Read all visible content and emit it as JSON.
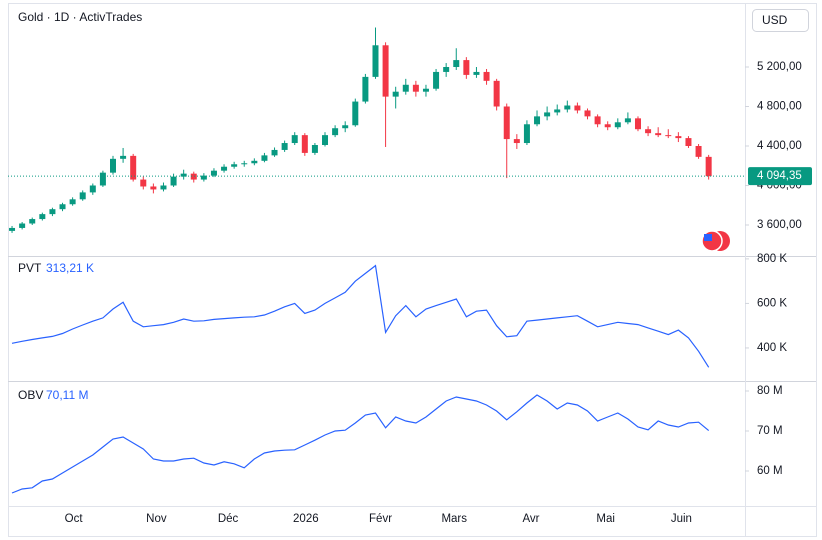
{
  "chart_data": [
    {
      "type": "candlestick",
      "title": "Gold · 1D · ActivTrades",
      "currency": "USD",
      "up_color": "#089981",
      "down_color": "#f23645",
      "candles": [
        [
          3540,
          3590,
          3520,
          3570
        ],
        [
          3570,
          3630,
          3555,
          3615
        ],
        [
          3615,
          3675,
          3600,
          3660
        ],
        [
          3660,
          3725,
          3645,
          3710
        ],
        [
          3710,
          3775,
          3690,
          3760
        ],
        [
          3760,
          3825,
          3740,
          3810
        ],
        [
          3810,
          3880,
          3795,
          3860
        ],
        [
          3860,
          3950,
          3845,
          3930
        ],
        [
          3930,
          4020,
          3905,
          4000
        ],
        [
          4000,
          4150,
          3985,
          4130
        ],
        [
          4130,
          4300,
          4110,
          4270
        ],
        [
          4270,
          4380,
          4230,
          4300
        ],
        [
          4300,
          4320,
          4040,
          4060
        ],
        [
          4060,
          4090,
          3960,
          3990
        ],
        [
          3990,
          4020,
          3920,
          3960
        ],
        [
          3960,
          4030,
          3940,
          4000
        ],
        [
          4000,
          4120,
          3985,
          4090
        ],
        [
          4090,
          4160,
          4060,
          4120
        ],
        [
          4120,
          4140,
          4030,
          4060
        ],
        [
          4060,
          4125,
          4040,
          4100
        ],
        [
          4100,
          4175,
          4085,
          4150
        ],
        [
          4150,
          4215,
          4130,
          4190
        ],
        [
          4190,
          4240,
          4170,
          4215
        ],
        [
          4215,
          4250,
          4190,
          4225
        ],
        [
          4225,
          4275,
          4205,
          4250
        ],
        [
          4250,
          4330,
          4235,
          4305
        ],
        [
          4305,
          4385,
          4290,
          4360
        ],
        [
          4360,
          4455,
          4340,
          4430
        ],
        [
          4430,
          4540,
          4410,
          4510
        ],
        [
          4510,
          4530,
          4300,
          4330
        ],
        [
          4330,
          4430,
          4310,
          4410
        ],
        [
          4410,
          4540,
          4395,
          4510
        ],
        [
          4510,
          4610,
          4490,
          4580
        ],
        [
          4580,
          4650,
          4540,
          4610
        ],
        [
          4610,
          4880,
          4595,
          4850
        ],
        [
          4850,
          5130,
          4830,
          5100
        ],
        [
          5100,
          5600,
          5080,
          5420
        ],
        [
          5420,
          5450,
          4390,
          4900
        ],
        [
          4900,
          5000,
          4780,
          4950
        ],
        [
          4950,
          5080,
          4920,
          5020
        ],
        [
          5020,
          5060,
          4900,
          4950
        ],
        [
          4950,
          5020,
          4900,
          4980
        ],
        [
          4980,
          5180,
          4960,
          5150
        ],
        [
          5150,
          5240,
          5100,
          5200
        ],
        [
          5200,
          5390,
          5170,
          5270
        ],
        [
          5270,
          5300,
          5080,
          5120
        ],
        [
          5120,
          5200,
          5090,
          5150
        ],
        [
          5150,
          5180,
          5020,
          5060
        ],
        [
          5060,
          5080,
          4760,
          4800
        ],
        [
          4800,
          4830,
          4075,
          4470
        ],
        [
          4470,
          4520,
          4370,
          4430
        ],
        [
          4430,
          4660,
          4410,
          4620
        ],
        [
          4620,
          4760,
          4600,
          4700
        ],
        [
          4700,
          4800,
          4660,
          4740
        ],
        [
          4740,
          4820,
          4710,
          4770
        ],
        [
          4770,
          4860,
          4740,
          4810
        ],
        [
          4810,
          4840,
          4730,
          4760
        ],
        [
          4760,
          4780,
          4670,
          4700
        ],
        [
          4700,
          4720,
          4590,
          4620
        ],
        [
          4620,
          4650,
          4560,
          4590
        ],
        [
          4590,
          4680,
          4570,
          4640
        ],
        [
          4640,
          4740,
          4620,
          4680
        ],
        [
          4680,
          4700,
          4550,
          4570
        ],
        [
          4570,
          4600,
          4500,
          4530
        ],
        [
          4530,
          4590,
          4490,
          4510
        ],
        [
          4510,
          4570,
          4480,
          4500
        ],
        [
          4500,
          4540,
          4440,
          4480
        ],
        [
          4480,
          4500,
          4380,
          4400
        ],
        [
          4400,
          4420,
          4270,
          4290
        ],
        [
          4290,
          4310,
          4060,
          4094.35
        ]
      ],
      "last_price": {
        "value": 4094.35,
        "label": "4 094,35"
      },
      "ylim": [
        3296,
        5828
      ],
      "yticks": [
        {
          "value": 3600,
          "label": "3 600,00"
        },
        {
          "value": 4000,
          "label": "4 000,00"
        },
        {
          "value": 4400,
          "label": "4 400,00"
        },
        {
          "value": 4800,
          "label": "4 800,00"
        },
        {
          "value": 5200,
          "label": "5 200,00"
        }
      ],
      "xlim": [
        -0.4,
        72.6
      ],
      "xticks": [
        {
          "value": 6.1,
          "label": "Oct"
        },
        {
          "value": 14.3,
          "label": "Nov"
        },
        {
          "value": 21.4,
          "label": "Déc"
        },
        {
          "value": 29.1,
          "label": "2026"
        },
        {
          "value": 36.5,
          "label": "Févr"
        },
        {
          "value": 43.8,
          "label": "Mars"
        },
        {
          "value": 51.4,
          "label": "Avr"
        },
        {
          "value": 58.8,
          "label": "Mai"
        },
        {
          "value": 66.3,
          "label": "Juin"
        }
      ]
    },
    {
      "type": "line",
      "name": "PVT",
      "last_label": "313,21 K",
      "color": "#2962ff",
      "values": [
        421,
        430,
        438,
        445,
        452,
        465,
        485,
        503,
        520,
        535,
        575,
        605,
        520,
        495,
        500,
        505,
        515,
        530,
        520,
        522,
        528,
        532,
        535,
        538,
        540,
        548,
        565,
        585,
        600,
        555,
        570,
        600,
        625,
        650,
        700,
        735,
        770,
        470,
        545,
        590,
        540,
        575,
        590,
        605,
        620,
        540,
        565,
        570,
        500,
        450,
        455,
        520,
        525,
        530,
        535,
        540,
        545,
        520,
        495,
        505,
        515,
        510,
        505,
        490,
        475,
        460,
        480,
        445,
        385,
        313.21
      ],
      "ylim": [
        256,
        804
      ],
      "yticks": [
        {
          "value": 400,
          "label": "400 K"
        },
        {
          "value": 600,
          "label": "600 K"
        },
        {
          "value": 800,
          "label": "800 K"
        }
      ]
    },
    {
      "type": "line",
      "name": "OBV",
      "last_label": "70,11 M",
      "color": "#2962ff",
      "values": [
        54.5,
        55.5,
        55.8,
        57.5,
        58,
        59.5,
        61,
        62.5,
        64,
        66,
        68,
        68.5,
        67,
        65.5,
        63,
        62.5,
        62.5,
        63,
        63.2,
        62,
        61.5,
        62.3,
        61.8,
        60.8,
        63,
        64.5,
        65,
        65.2,
        65.3,
        66.5,
        67.7,
        69,
        70,
        70.2,
        72,
        74,
        74.5,
        70.8,
        73.5,
        72.5,
        72,
        73.5,
        75.5,
        77.5,
        78.5,
        78,
        77.5,
        76.5,
        75,
        72.8,
        74.8,
        77,
        79,
        77.5,
        75.5,
        77,
        76.5,
        75,
        72.5,
        73.5,
        74.5,
        73,
        71,
        70.3,
        72.5,
        71.5,
        71,
        72,
        72.2,
        70.11
      ],
      "ylim": [
        51.5,
        82.25
      ],
      "yticks": [
        {
          "value": 60,
          "label": "60 M"
        },
        {
          "value": 70,
          "label": "70 M"
        },
        {
          "value": 80,
          "label": "80 M"
        }
      ]
    }
  ]
}
